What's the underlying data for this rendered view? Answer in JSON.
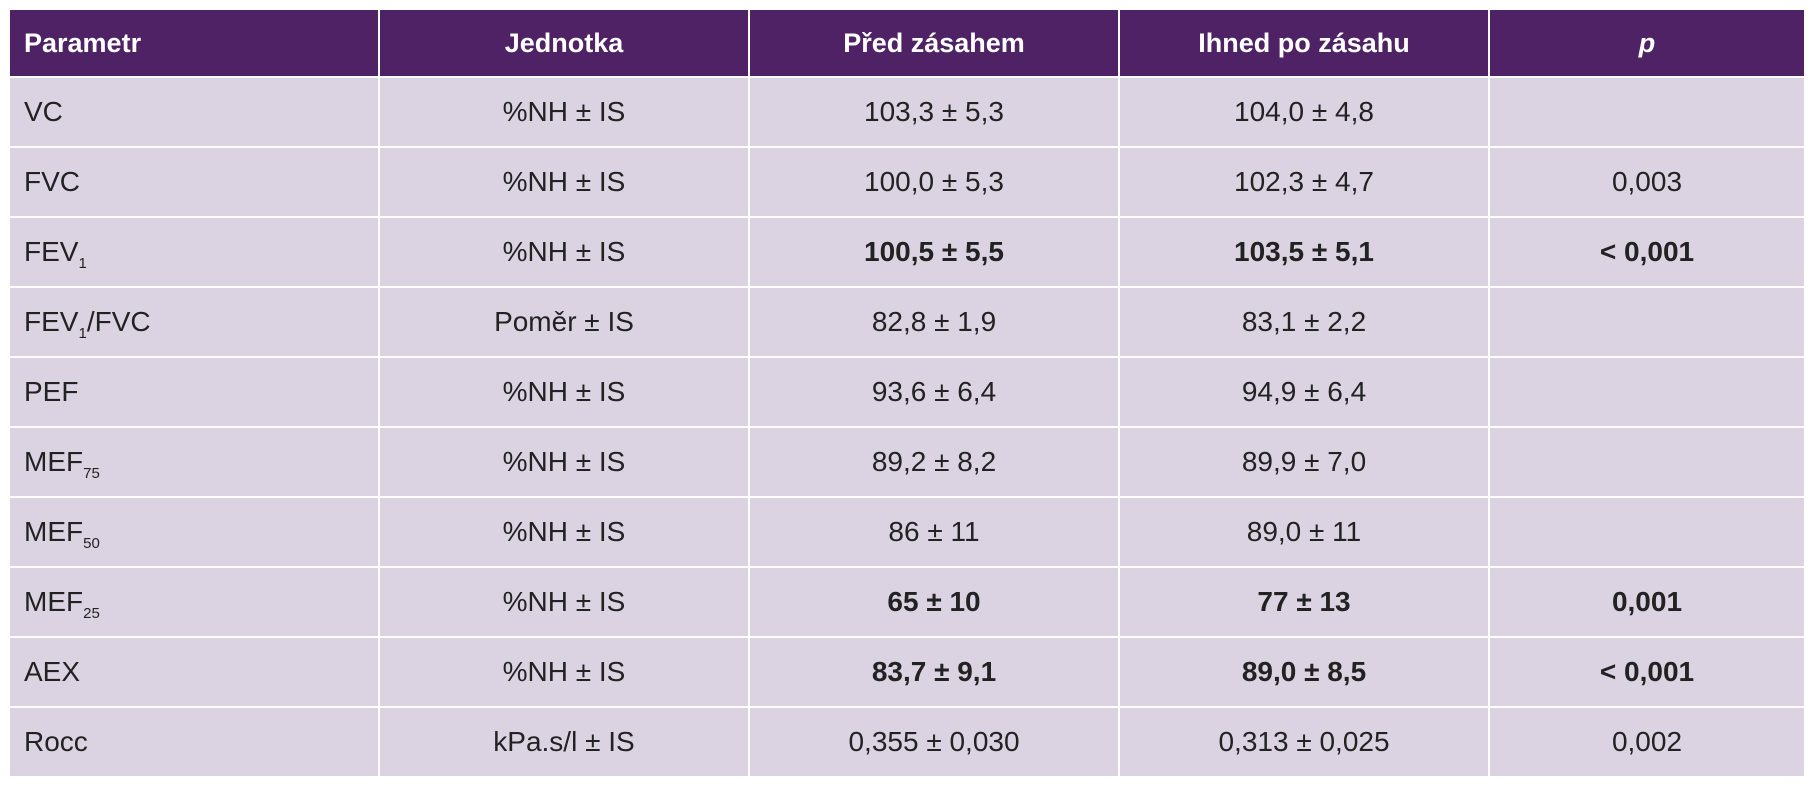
{
  "table": {
    "headers": [
      "Parametr",
      "Jednotka",
      "Před zásahem",
      "Ihned po zásahu",
      "p"
    ],
    "rows": [
      {
        "param": "VC",
        "param_sub": "",
        "param_suffix": "",
        "unit": "%NH ± IS",
        "before": "103,3 ± 5,3",
        "after": "104,0 ± 4,8",
        "p": "",
        "bold": false
      },
      {
        "param": "FVC",
        "param_sub": "",
        "param_suffix": "",
        "unit": "%NH ± IS",
        "before": "100,0 ± 5,3",
        "after": "102,3 ± 4,7",
        "p": "0,003",
        "bold": false
      },
      {
        "param": "FEV",
        "param_sub": "1",
        "param_suffix": "",
        "unit": "%NH ± IS",
        "before": "100,5 ± 5,5",
        "after": "103,5 ± 5,1",
        "p": "< 0,001",
        "bold": true
      },
      {
        "param": "FEV",
        "param_sub": "1",
        "param_suffix": "/FVC",
        "unit": "Poměr ± IS",
        "before": "82,8 ± 1,9",
        "after": "83,1 ± 2,2",
        "p": "",
        "bold": false
      },
      {
        "param": "PEF",
        "param_sub": "",
        "param_suffix": "",
        "unit": "%NH ± IS",
        "before": "93,6 ± 6,4",
        "after": "94,9 ± 6,4",
        "p": "",
        "bold": false
      },
      {
        "param": "MEF",
        "param_sub": "75",
        "param_suffix": "",
        "unit": "%NH ± IS",
        "before": "89,2 ± 8,2",
        "after": "89,9 ± 7,0",
        "p": "",
        "bold": false
      },
      {
        "param": "MEF",
        "param_sub": "50",
        "param_suffix": "",
        "unit": "%NH ± IS",
        "before": "86 ± 11",
        "after": "89,0 ± 11",
        "p": "",
        "bold": false
      },
      {
        "param": "MEF",
        "param_sub": "25",
        "param_suffix": "",
        "unit": "%NH ± IS",
        "before": "65 ± 10",
        "after": "77 ± 13",
        "p": "0,001",
        "bold": true
      },
      {
        "param": "AEX",
        "param_sub": "",
        "param_suffix": "",
        "unit": "%NH ± IS",
        "before": "83,7 ± 9,1",
        "after": "89,0 ± 8,5",
        "p": "< 0,001",
        "bold": true
      },
      {
        "param": "Rocc",
        "param_sub": "",
        "param_suffix": "",
        "unit": "kPa.s/l ± IS",
        "before": "0,355 ± 0,030",
        "after": "0,313 ± 0,025",
        "p": "0,002",
        "bold": false
      }
    ]
  },
  "colors": {
    "header_bg": "#4e2265",
    "header_text": "#ffffff",
    "cell_bg": "#dcd3e2",
    "cell_text": "#222222"
  }
}
